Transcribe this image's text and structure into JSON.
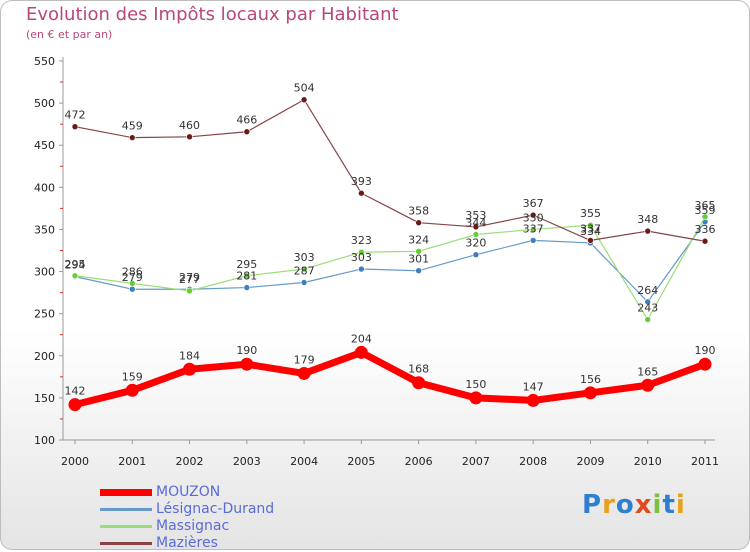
{
  "title": "Evolution des Impôts locaux par Habitant",
  "subtitle": "(en € et par an)",
  "brand": "Proxiti",
  "chart_data": {
    "type": "line",
    "title": "Evolution des Impôts locaux par Habitant",
    "subtitle": "(en € et par an)",
    "xlabel": "",
    "ylabel": "",
    "ylim": [
      100,
      550
    ],
    "yticks": [
      100,
      150,
      200,
      250,
      300,
      350,
      400,
      450,
      500,
      550
    ],
    "grid": false,
    "legend_position": "bottom-left",
    "x": [
      "2000",
      "2001",
      "2002",
      "2003",
      "2004",
      "2005",
      "2006",
      "2007",
      "2008",
      "2009",
      "2010",
      "2011"
    ],
    "series": [
      {
        "name": "MOUZON",
        "color": "#ff0000",
        "emphasis": true,
        "values": [
          142,
          159,
          184,
          190,
          179,
          204,
          168,
          150,
          147,
          156,
          165,
          190
        ]
      },
      {
        "name": "Lésignac-Durand",
        "color": "#6699cc",
        "marker": "#3d7fbf",
        "values": [
          294,
          279,
          279,
          281,
          287,
          303,
          301,
          320,
          337,
          334,
          264,
          359
        ]
      },
      {
        "name": "Massignac",
        "color": "#99dd77",
        "marker": "#66cc33",
        "values": [
          295,
          286,
          277,
          295,
          303,
          323,
          324,
          344,
          350,
          355,
          243,
          365
        ]
      },
      {
        "name": "Mazières",
        "color": "#884444",
        "marker": "#6b1a1a",
        "values": [
          472,
          459,
          460,
          466,
          504,
          393,
          358,
          353,
          367,
          337,
          348,
          336
        ]
      }
    ]
  }
}
